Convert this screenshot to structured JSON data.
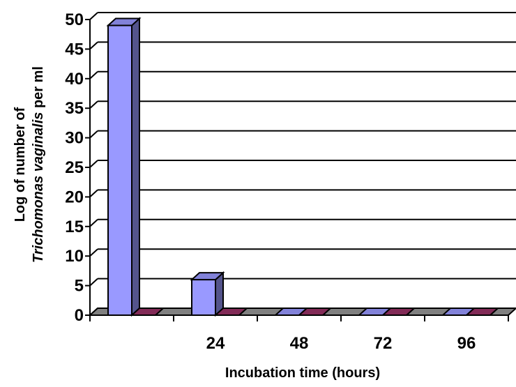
{
  "chart_data": {
    "type": "bar",
    "categories": [
      "",
      "24",
      "48",
      "72",
      "96"
    ],
    "series": [
      {
        "color": "#9999ff",
        "values": [
          49,
          6,
          0,
          0,
          0
        ]
      },
      {
        "color": "#993366",
        "values": [
          0,
          0,
          0,
          0,
          0
        ]
      }
    ],
    "xlabel": "Incubation time (hours)",
    "ylabel_line1": "Log of number of",
    "ylabel_italic": "Trichomonas vaginalis",
    "ylabel_tail": " per ml",
    "ylim": [
      0,
      50
    ],
    "ytick_step": 5,
    "grid": true,
    "three_d": true
  }
}
